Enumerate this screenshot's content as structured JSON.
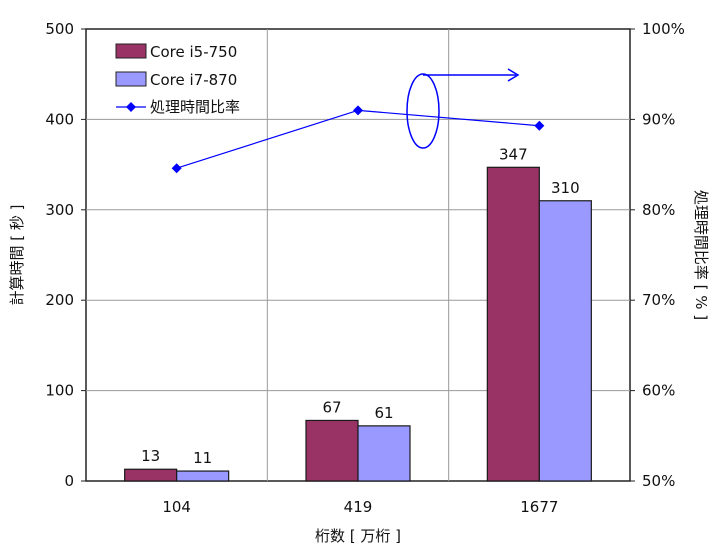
{
  "chart_data": {
    "type": "bar",
    "categories": [
      "104",
      "419",
      "1677"
    ],
    "series": [
      {
        "name": "Core i5-750",
        "kind": "bar",
        "axis": "left",
        "values": [
          13,
          67,
          347
        ],
        "color": "#993366"
      },
      {
        "name": "Core i7-870",
        "kind": "bar",
        "axis": "left",
        "values": [
          11,
          61,
          310
        ],
        "color": "#9999ff"
      },
      {
        "name": "処理時間比率",
        "kind": "line",
        "axis": "right",
        "values": [
          84.6,
          91.0,
          89.3
        ],
        "color": "#0000ff",
        "marker": "diamond"
      }
    ],
    "data_labels": [
      [
        "13",
        "67",
        "347"
      ],
      [
        "11",
        "61",
        "310"
      ]
    ],
    "xlabel": "桁数 [ 万桁 ]",
    "ylabel_left": "計算時間 [ 秒 ]",
    "ylabel_right": "処理時間比率 [ % ]",
    "ylim_left": [
      0,
      500
    ],
    "yticks_left": [
      "0",
      "100",
      "200",
      "300",
      "400",
      "500"
    ],
    "ylim_right": [
      50,
      100
    ],
    "yticks_right": [
      "50%",
      "60%",
      "70%",
      "80%",
      "90%",
      "100%"
    ],
    "grid": true,
    "legend_position": "top-left",
    "annotation": "ellipse-with-arrow-pointing-to-right-axis"
  }
}
